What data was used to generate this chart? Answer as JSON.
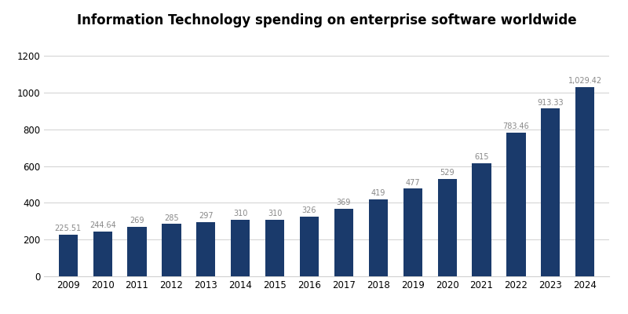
{
  "title": "Information Technology spending on enterprise software worldwide",
  "years": [
    2009,
    2010,
    2011,
    2012,
    2013,
    2014,
    2015,
    2016,
    2017,
    2018,
    2019,
    2020,
    2021,
    2022,
    2023,
    2024
  ],
  "values": [
    225.51,
    244.64,
    269,
    285,
    297,
    310,
    310,
    326,
    369,
    419,
    477,
    529,
    615,
    783.46,
    913.33,
    1029.42
  ],
  "labels": [
    "225.51",
    "244.64",
    "269",
    "285",
    "297",
    "310",
    "310",
    "326",
    "369",
    "419",
    "477",
    "529",
    "615",
    "783.46",
    "913.33",
    "1,029.42"
  ],
  "bar_color": "#1a3a6b",
  "background_color": "#ffffff",
  "ylim": [
    0,
    1300
  ],
  "yticks": [
    0,
    200,
    400,
    600,
    800,
    1000,
    1200
  ],
  "title_fontsize": 12,
  "label_fontsize": 7,
  "tick_fontsize": 8.5,
  "grid_color": "#d0d0d0",
  "label_color": "#888888"
}
